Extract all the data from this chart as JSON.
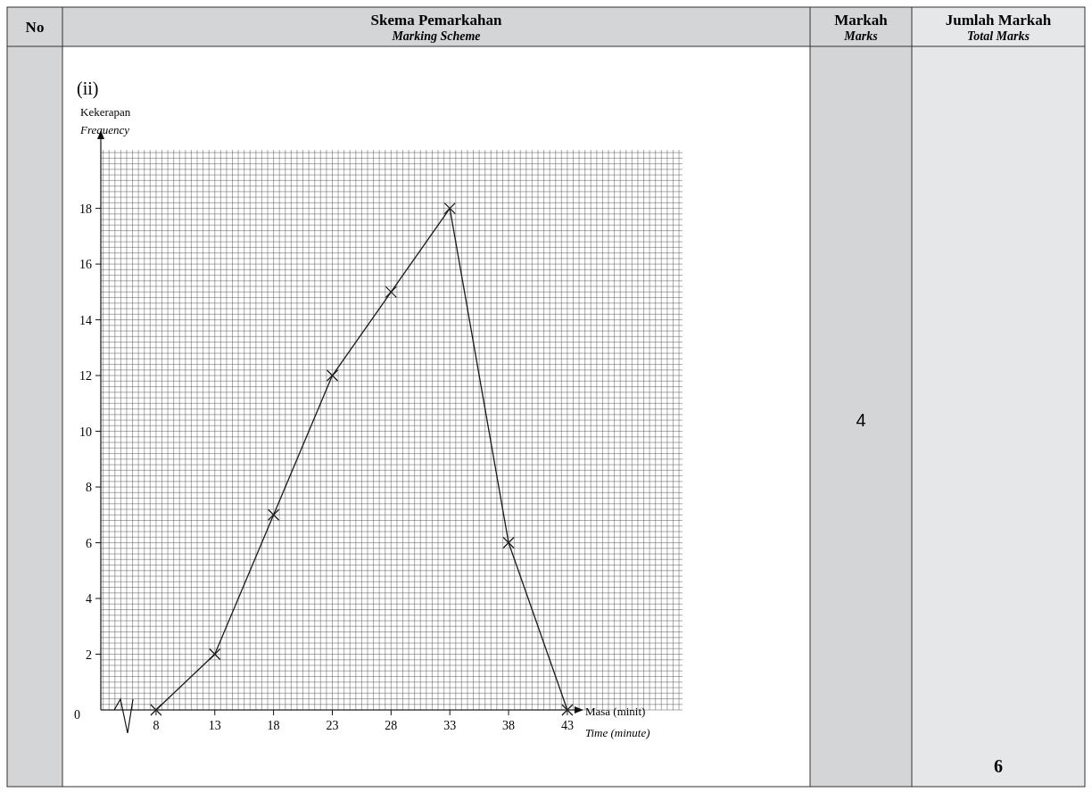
{
  "chart_data": {
    "type": "line",
    "ylabel": "Kekerapan\nFrequency",
    "xlabel": "Masa (minit)\nTime (minute)",
    "x": [
      8,
      13,
      18,
      23,
      28,
      33,
      38,
      43
    ],
    "series": [
      {
        "color": "#1a1a1a",
        "values": [
          0,
          2,
          7,
          12,
          15,
          18,
          6,
          0
        ]
      }
    ],
    "xlim": [
      3.3,
      52.8
    ],
    "xticks": [
      8,
      13,
      18,
      23,
      28,
      33,
      38,
      43
    ],
    "ylim": [
      0,
      20.1
    ],
    "yticks": [
      2,
      4,
      6,
      8,
      10,
      12,
      14,
      16,
      18
    ],
    "grid": true,
    "marker": "cross",
    "line_style": "solid",
    "annotations": [
      "No",
      "Skema Pemarkahan",
      "Marking Scheme",
      "Markah",
      "Marks",
      "Jumlah Markah",
      "Total Marks",
      "4",
      "6",
      "(ii)",
      "0"
    ]
  }
}
